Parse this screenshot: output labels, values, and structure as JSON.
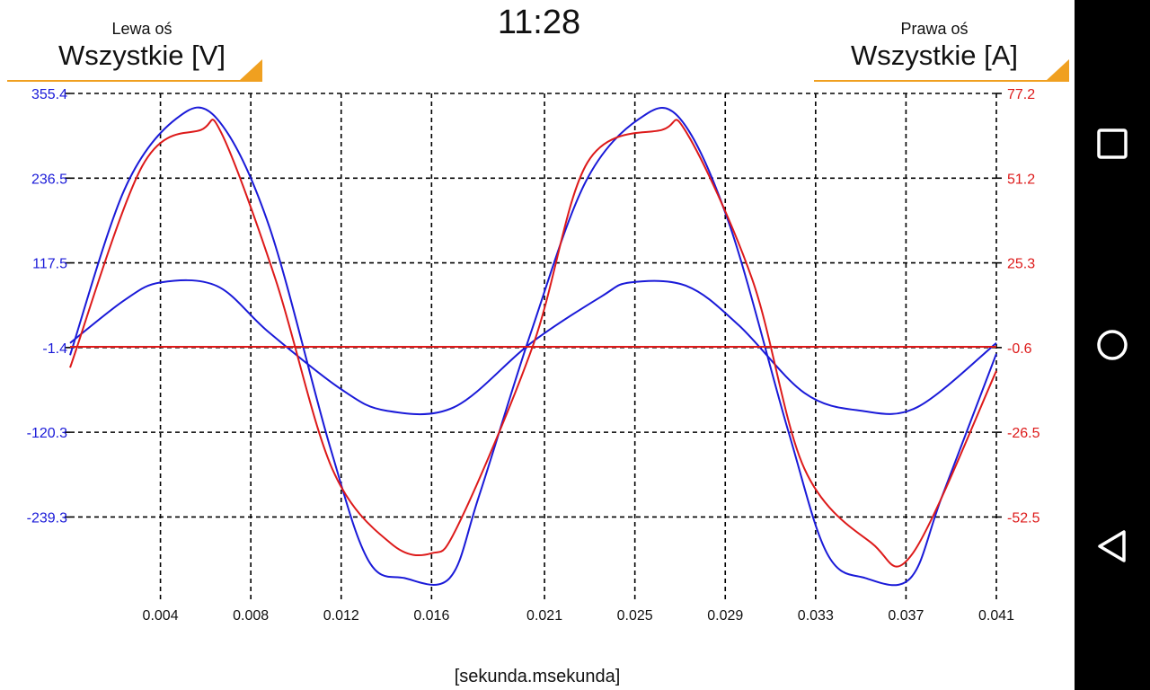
{
  "header": {
    "clock": "11:28",
    "left_axis": {
      "title": "Lewa oś",
      "value": "Wszystkie [V]"
    },
    "right_axis": {
      "title": "Prawa oś",
      "value": "Wszystkie [A]"
    }
  },
  "nav": {
    "icons": [
      "square-icon",
      "circle-icon",
      "back-triangle-icon"
    ]
  },
  "chart_data": {
    "type": "line",
    "xlabel": "[sekunda.msekunda]",
    "x_ticks": [
      "0.004",
      "0.008",
      "0.012",
      "0.016",
      "0.021",
      "0.025",
      "0.029",
      "0.033",
      "0.037",
      "0.041"
    ],
    "xlim": [
      0.0,
      0.041
    ],
    "y_left_ticks": [
      "355.4",
      "236.5",
      "117.5",
      "-1.4",
      "-120.3",
      "-239.3"
    ],
    "y_left_lim": [
      -356.0,
      355.4
    ],
    "y_right_ticks": [
      "77.2",
      "51.2",
      "25.3",
      "-0.6",
      "-26.5",
      "-52.5"
    ],
    "y_right_lim": [
      -78.4,
      77.2
    ],
    "grid": true,
    "colors": {
      "left": "#1a1ad8",
      "right": "#dd1a1a",
      "grid": "#000000",
      "accent": "#f0a020"
    },
    "series": [
      {
        "axis": "left",
        "color": "#1a1ad8",
        "x": [
          0.0,
          0.0024,
          0.0047,
          0.0065,
          0.0088,
          0.0115,
          0.0132,
          0.0148,
          0.0168,
          0.0181,
          0.0204,
          0.0228,
          0.0252,
          0.027,
          0.0292,
          0.0318,
          0.0335,
          0.0352,
          0.0372,
          0.0386,
          0.041
        ],
        "y": [
          -12,
          220,
          320,
          320,
          170,
          -140,
          -300,
          -325,
          -325,
          -210,
          20,
          230,
          320,
          320,
          170,
          -120,
          -290,
          -325,
          -325,
          -210,
          -10
        ]
      },
      {
        "axis": "left",
        "color": "#1a1ad8",
        "x": [
          0.0,
          0.0024,
          0.004,
          0.0065,
          0.0088,
          0.012,
          0.014,
          0.017,
          0.0204,
          0.0235,
          0.0248,
          0.0273,
          0.0296,
          0.0325,
          0.035,
          0.0375,
          0.041
        ],
        "y": [
          5,
          65,
          90,
          85,
          20,
          -60,
          -90,
          -85,
          5,
          70,
          90,
          85,
          30,
          -65,
          -90,
          -85,
          5
        ]
      },
      {
        "axis": "right",
        "color": "#dd1a1a",
        "x": [
          0.0,
          0.0032,
          0.0058,
          0.0067,
          0.0091,
          0.0116,
          0.0142,
          0.016,
          0.0172,
          0.0205,
          0.0229,
          0.0262,
          0.0273,
          0.0302,
          0.0325,
          0.0355,
          0.0373,
          0.041
        ],
        "y": [
          -7,
          55,
          66,
          65,
          20,
          -38,
          -61,
          -64,
          -55,
          0,
          56,
          66,
          65,
          20,
          -38,
          -61,
          -64,
          -8
        ]
      },
      {
        "axis": "right",
        "color": "#dd1a1a",
        "x": [
          0.0,
          0.041
        ],
        "y": [
          -0.6,
          -0.6
        ]
      }
    ]
  }
}
